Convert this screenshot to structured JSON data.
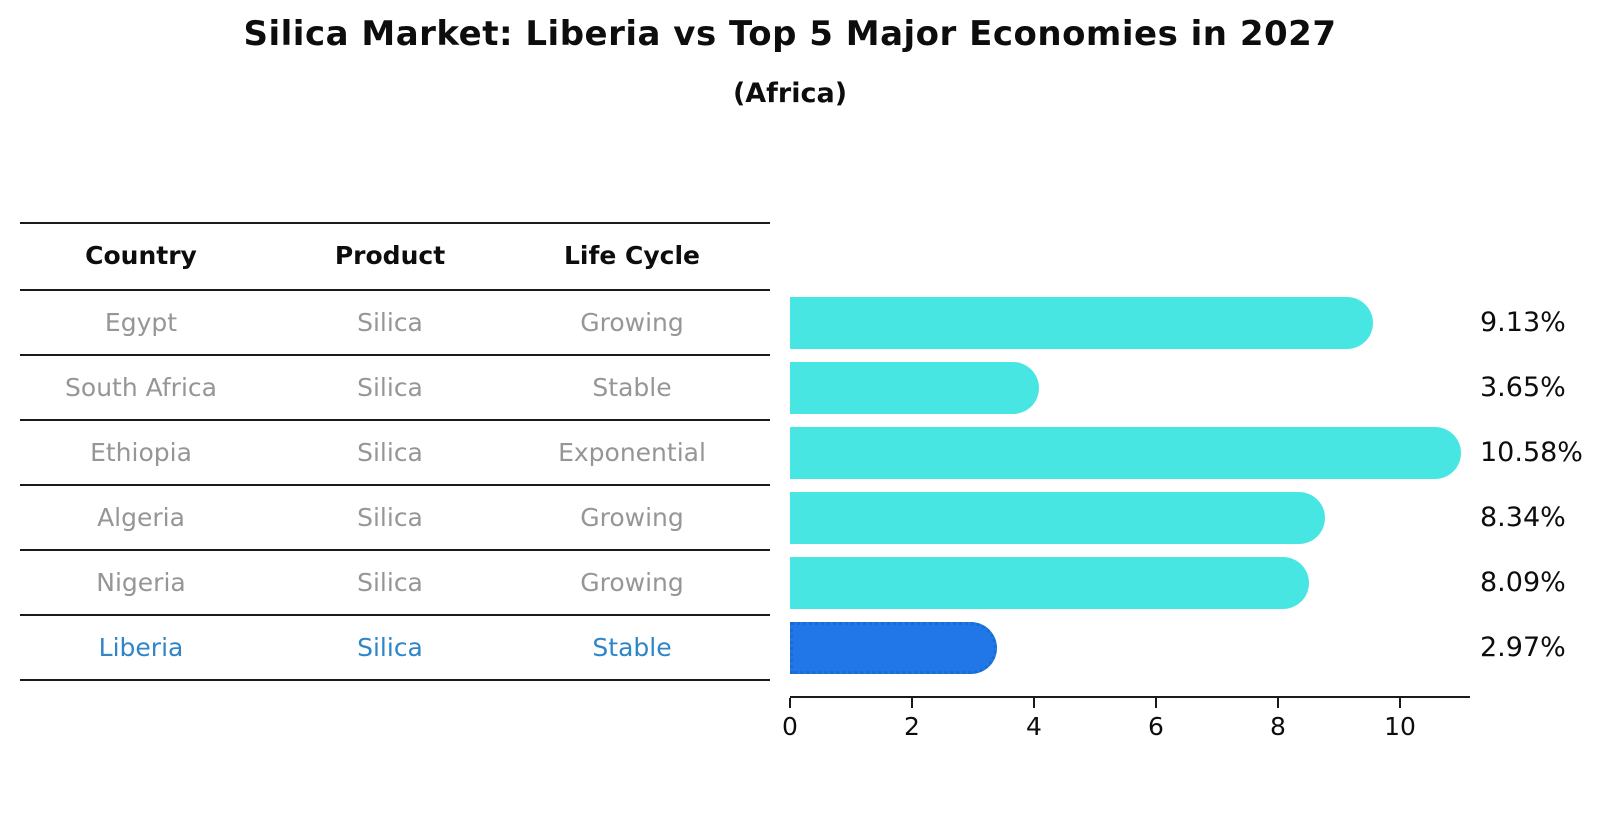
{
  "chart": {
    "title": "Silica Market: Liberia vs Top 5 Major Economies in 2027",
    "subtitle": "(Africa)"
  },
  "table": {
    "headers": [
      "Country",
      "Product",
      "Life Cycle"
    ],
    "rows": [
      {
        "country": "Egypt",
        "product": "Silica",
        "life_cycle": "Growing"
      },
      {
        "country": "South Africa",
        "product": "Silica",
        "life_cycle": "Stable"
      },
      {
        "country": "Ethiopia",
        "product": "Silica",
        "life_cycle": "Exponential"
      },
      {
        "country": "Algeria",
        "product": "Silica",
        "life_cycle": "Growing"
      },
      {
        "country": "Nigeria",
        "product": "Silica",
        "life_cycle": "Growing"
      },
      {
        "country": "Liberia",
        "product": "Silica",
        "life_cycle": "Stable"
      }
    ]
  },
  "chart_data": {
    "type": "bar",
    "orientation": "horizontal",
    "title": "Silica Market: Liberia vs Top 5 Major Economies in 2027",
    "subtitle": "(Africa)",
    "categories": [
      "Egypt",
      "South Africa",
      "Ethiopia",
      "Algeria",
      "Nigeria",
      "Liberia"
    ],
    "values": [
      9.13,
      3.65,
      10.58,
      8.34,
      8.09,
      2.97
    ],
    "labels": [
      "9.13%",
      "3.65%",
      "10.58%",
      "8.34%",
      "8.09%",
      "2.97%"
    ],
    "xticks": [
      "0",
      "2",
      "4",
      "6",
      "8",
      "10"
    ],
    "xlim": [
      0,
      11.15
    ],
    "grid": false,
    "legend_position": "none",
    "highlight_index": 5,
    "bar_color": "#48E6E2",
    "highlight_bar_color": "#2277E8",
    "highlight_text_color": "#2E86C9",
    "muted_text_color": "#969696"
  }
}
